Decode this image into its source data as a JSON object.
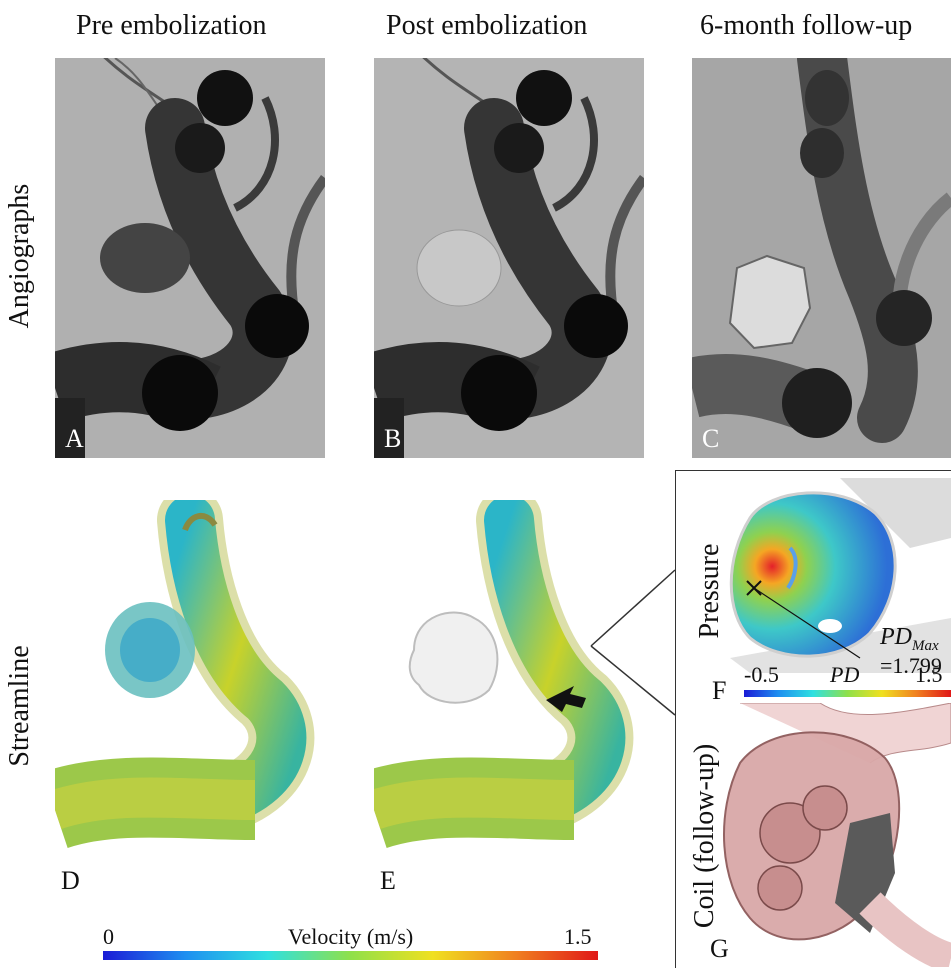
{
  "columns": {
    "pre": "Pre embolization",
    "post": "Post embolization",
    "followup": "6-month follow-up"
  },
  "rows": {
    "angio": "Angiographs",
    "stream": "Streamline",
    "pressure": "Pressure",
    "coil": "Coil (follow-up)"
  },
  "panels": {
    "a": "A",
    "b": "B",
    "c": "C",
    "d": "D",
    "e": "E",
    "f": "F",
    "g": "G"
  },
  "velocity_scale": {
    "min": "0",
    "title": "Velocity (m/s)",
    "max": "1.5"
  },
  "pd_scale": {
    "min": "-0.5",
    "title": "PD",
    "max": "1.5"
  },
  "pd_annotation": {
    "label": "PD",
    "subscript": "Max",
    "value": "=1.799"
  },
  "colors": {
    "angio_bg": "#a9a9a9",
    "vessel": "#2b2b2b",
    "coil_pink": "#e7b5b5",
    "coil_gray": "#5a5a5a"
  }
}
